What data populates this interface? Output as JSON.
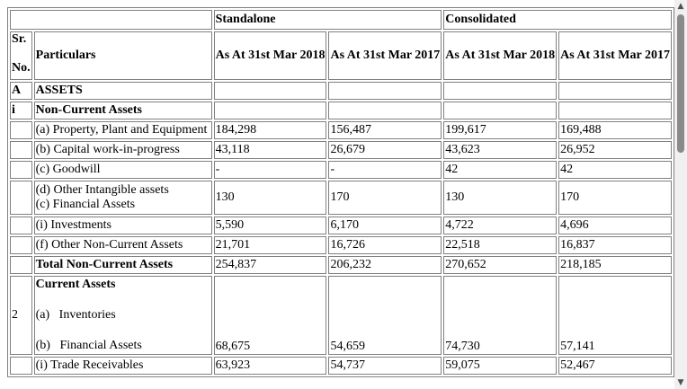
{
  "header": {
    "standalone": "Standalone",
    "consolidated": "Consolidated",
    "sr_line1": "Sr.",
    "sr_line2": "No.",
    "particulars": "Particulars",
    "col1": "As At 31st Mar 2018",
    "col2": "As At 31st Mar 2017",
    "col3": "As At 31st Mar 2018",
    "col4": "As At 31st Mar 2017"
  },
  "rows": {
    "assets": {
      "sr": "A",
      "label": "ASSETS"
    },
    "noncurrent": {
      "sr": "i",
      "label": "Non-Current Assets"
    },
    "ppe": {
      "label": "(a) Property, Plant and Equipment",
      "v": [
        "184,298",
        "156,487",
        "199,617",
        "169,488"
      ]
    },
    "cwip": {
      "label": "(b) Capital work-in-progress",
      "v": [
        "43,118",
        "26,679",
        "43,623",
        "26,952"
      ]
    },
    "goodwill": {
      "label": "(c) Goodwill",
      "v": [
        "-",
        "-",
        "42",
        "42"
      ]
    },
    "intangible": {
      "label1": "(d) Other Intangible assets",
      "label2": "(c) Financial Assets",
      "v": [
        "130",
        "170",
        "130",
        "170"
      ]
    },
    "investments": {
      "label": "(i) Investments",
      "v": [
        "5,590",
        "6,170",
        "4,722",
        "4,696"
      ]
    },
    "other_nca": {
      "label": "(f) Other Non-Current Assets",
      "v": [
        "21,701",
        "16,726",
        "22,518",
        "16,837"
      ]
    },
    "total_nca": {
      "label": "Total Non-Current Assets",
      "v": [
        "254,837",
        "206,232",
        "270,652",
        "218,185"
      ]
    },
    "current": {
      "sr": "2",
      "label": "Current Assets",
      "inventories": "(a)   Inventories",
      "financial": "(b)   Financial Assets",
      "v": [
        "68,675",
        "54,659",
        "74,730",
        "57,141"
      ]
    },
    "trade": {
      "label": "(i) Trade Receivables",
      "v": [
        "63,923",
        "54,737",
        "59,075",
        "52,467"
      ]
    }
  }
}
